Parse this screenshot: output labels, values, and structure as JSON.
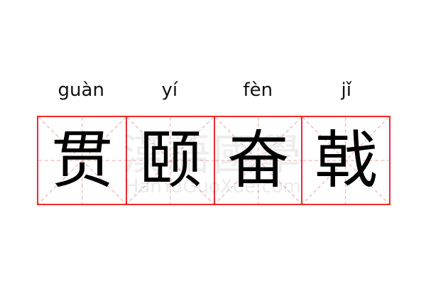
{
  "pinyin": [
    "guàn",
    "yí",
    "fèn",
    "jǐ"
  ],
  "characters": [
    "贯",
    "颐",
    "奋",
    "戟"
  ],
  "watermark": {
    "chinese": "漢語國學",
    "latin": "HanYuGuoXue.com"
  },
  "colors": {
    "grid_border": "#ee2b2b",
    "guide_lines": "#f4a0a0"
  }
}
